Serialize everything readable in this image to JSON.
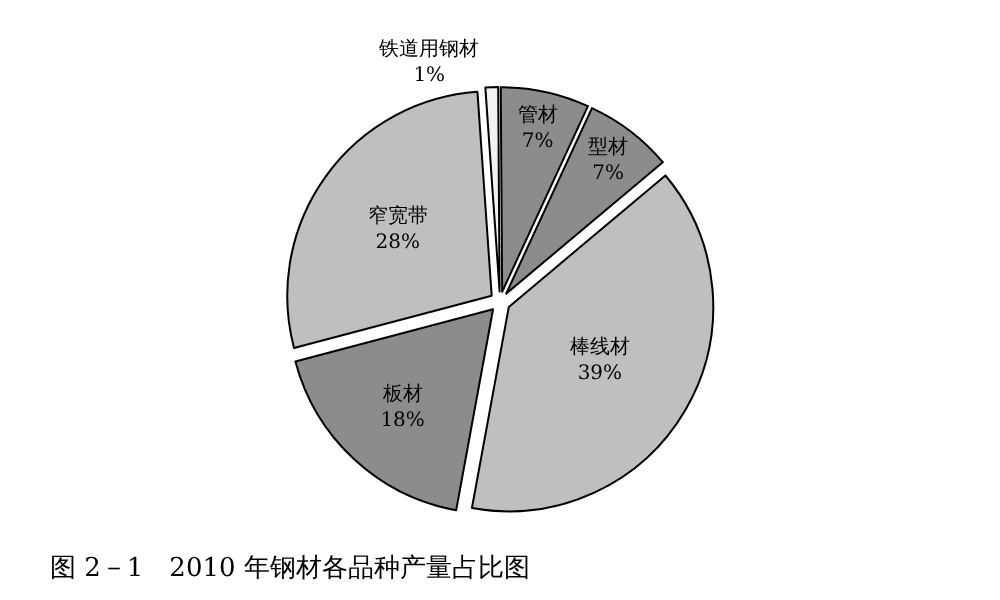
{
  "chart_data": {
    "type": "pie",
    "title": "图 2－1　2010 年钢材各品种产量占比图",
    "categories": [
      "铁道用钢材",
      "管材",
      "型材",
      "棒线材",
      "板材",
      "窄宽带"
    ],
    "values": [
      1,
      7,
      7,
      39,
      18,
      28
    ],
    "value_labels": [
      "1%",
      "7%",
      "7%",
      "39%",
      "18%",
      "28%"
    ],
    "colors": [
      "#f2f2f2",
      "#8c8c8c",
      "#8c8c8c",
      "#bfbfbf",
      "#8c8c8c",
      "#bfbfbf"
    ],
    "legend": false
  }
}
